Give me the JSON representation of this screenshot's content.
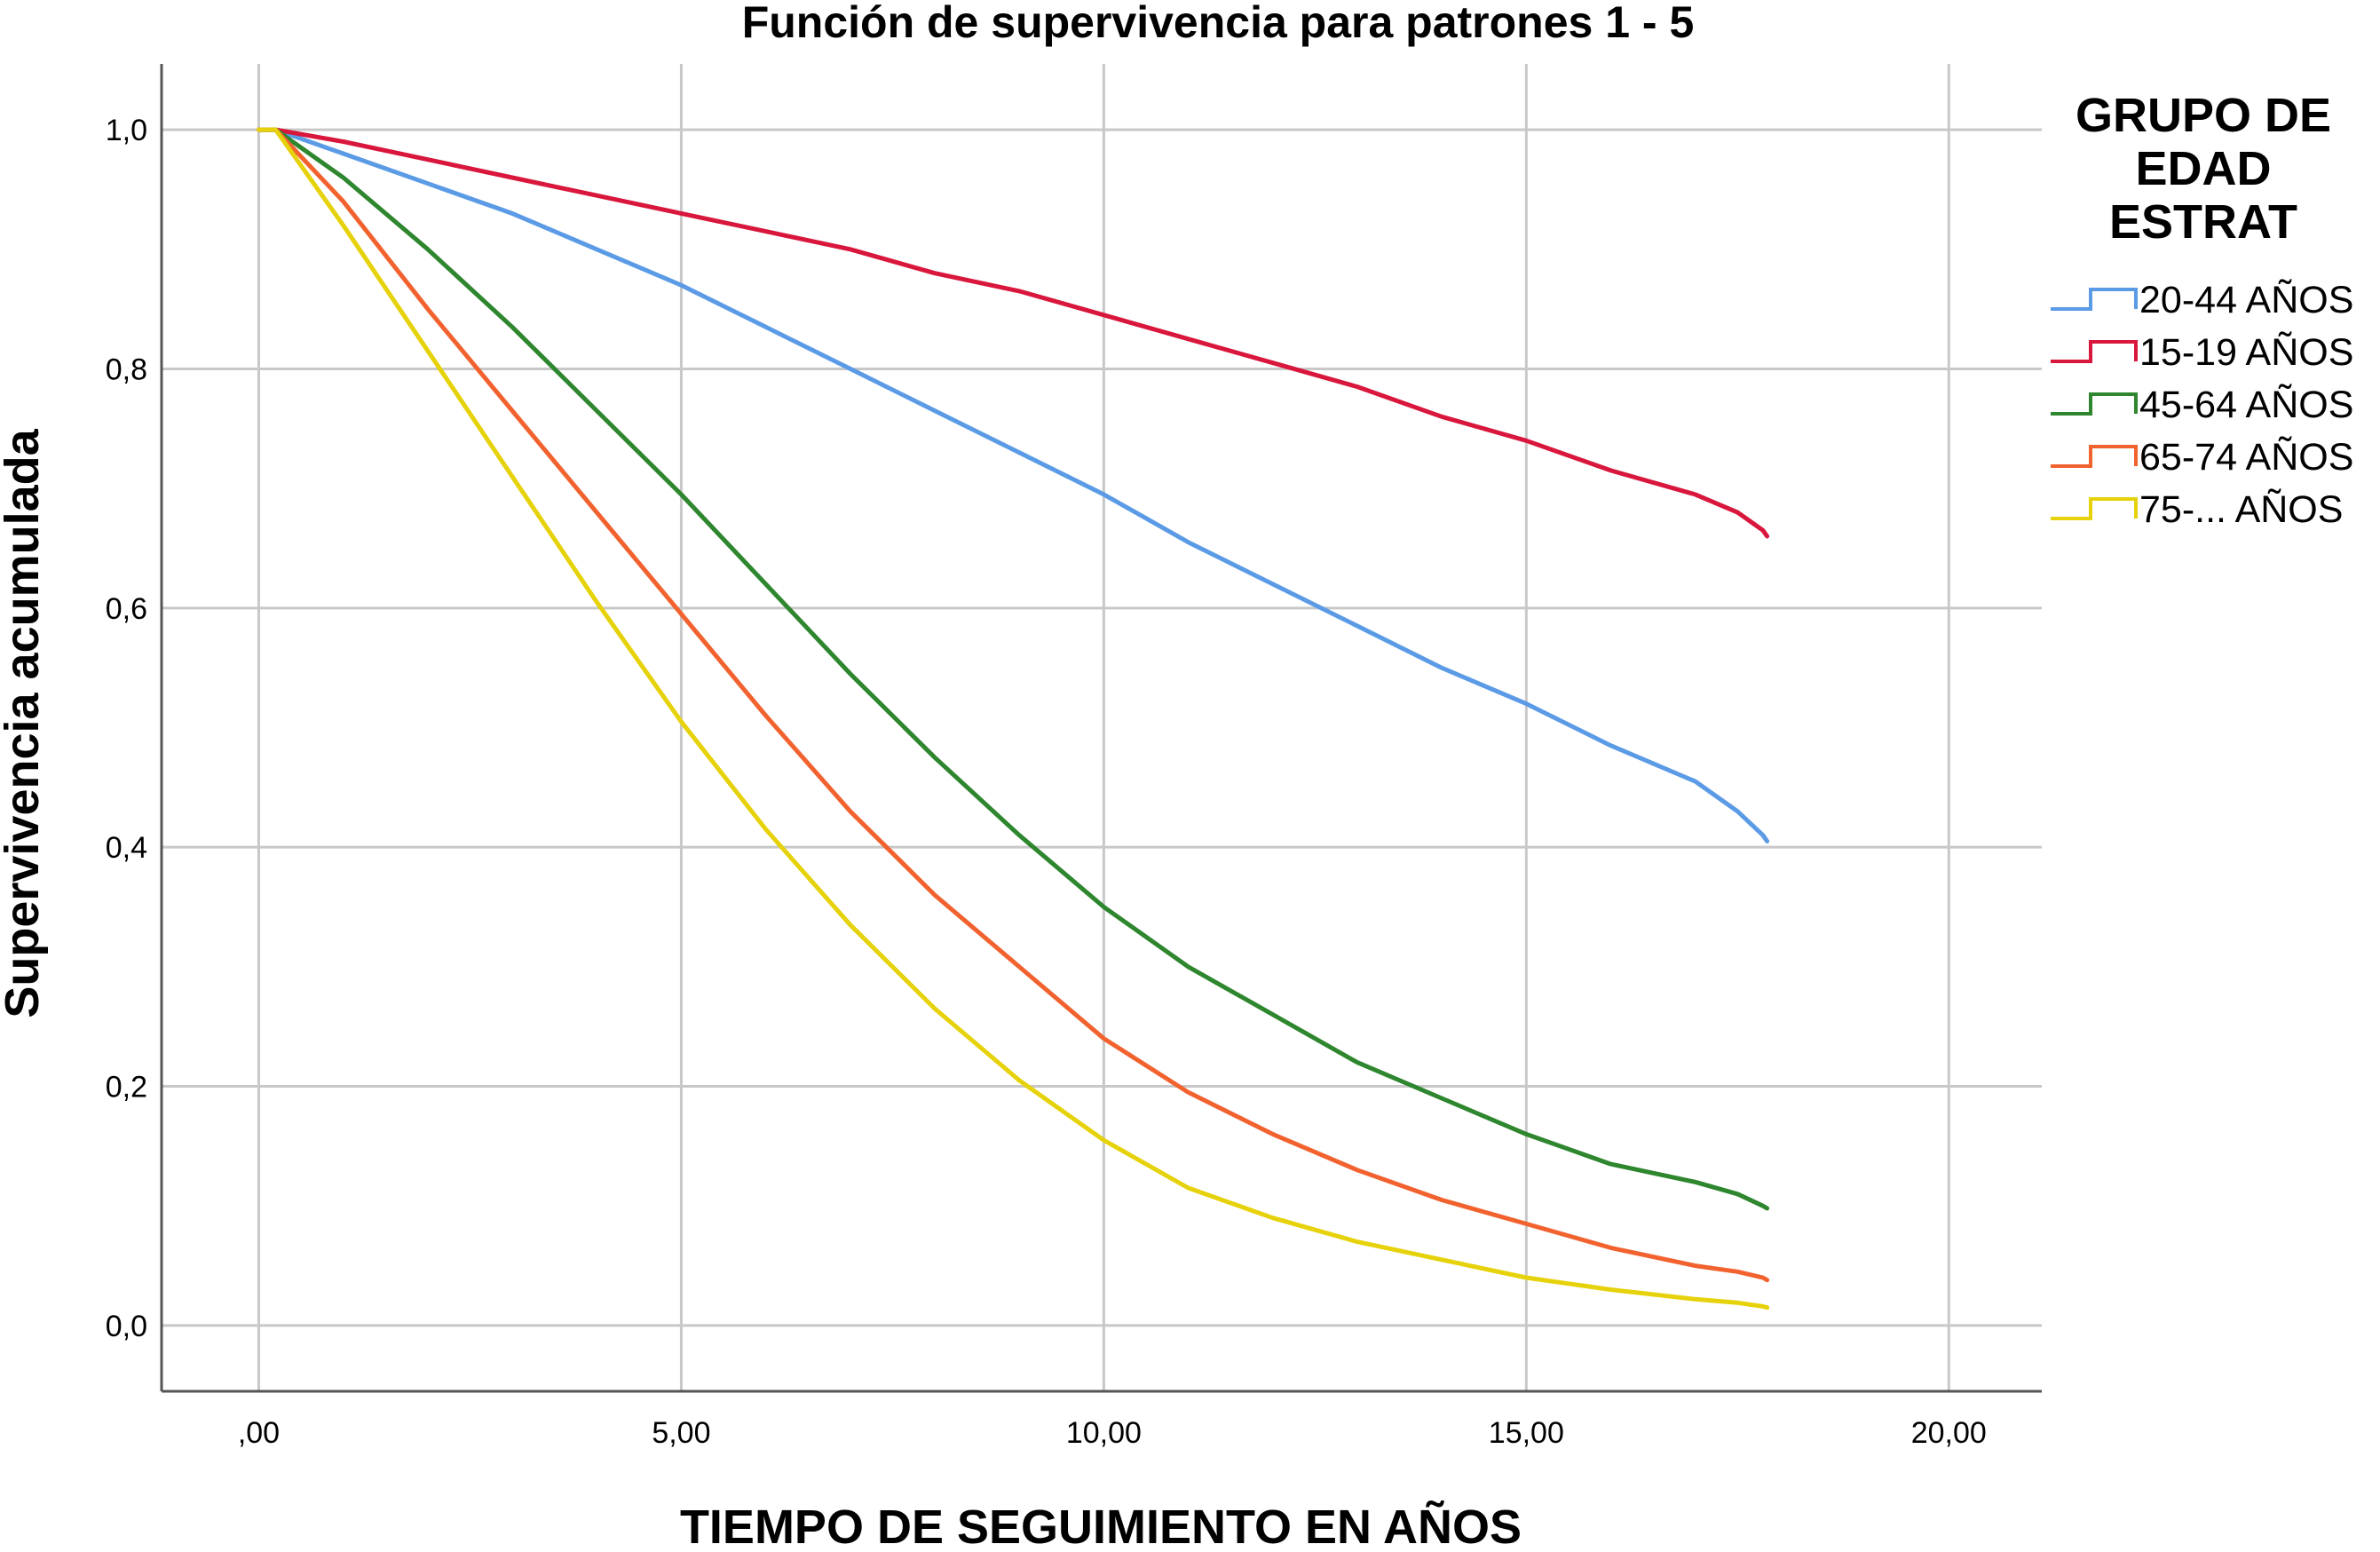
{
  "chart_data": {
    "type": "line",
    "title": "Función de supervivencia para patrones 1 - 5",
    "xlabel": "TIEMPO DE SEGUIMIENTO EN AÑOS",
    "ylabel": "Supervivencia acumulada",
    "xlim": [
      -1.15,
      21.1
    ],
    "ylim": [
      -0.055,
      1.055
    ],
    "x_ticks": [
      0,
      5,
      10,
      15,
      20
    ],
    "x_tick_labels": [
      ",00",
      "5,00",
      "10,00",
      "15,00",
      "20,00"
    ],
    "y_ticks": [
      0,
      0.2,
      0.4,
      0.6,
      0.8,
      1.0
    ],
    "y_tick_labels": [
      "0,0",
      "0,2",
      "0,4",
      "0,6",
      "0,8",
      "1,0"
    ],
    "grid": true,
    "legend": {
      "title_lines": [
        "GRUPO DE",
        "EDAD",
        "ESTRAT"
      ],
      "placement": "right"
    },
    "series": [
      {
        "name": "20-44 AÑOS",
        "color": "#5b9be6",
        "x": [
          0,
          0.2,
          1,
          2,
          3,
          4,
          5,
          6,
          7,
          8,
          9,
          10,
          11,
          12,
          13,
          14,
          15,
          16,
          17,
          17.5,
          17.8,
          17.85
        ],
        "y": [
          1,
          1,
          0.98,
          0.955,
          0.93,
          0.9,
          0.87,
          0.835,
          0.8,
          0.765,
          0.73,
          0.695,
          0.655,
          0.62,
          0.585,
          0.55,
          0.52,
          0.485,
          0.455,
          0.43,
          0.41,
          0.405
        ]
      },
      {
        "name": "15-19 AÑOS",
        "color": "#d9163c",
        "x": [
          0,
          0.2,
          1,
          2,
          3,
          4,
          5,
          6,
          7,
          8,
          9,
          10,
          11,
          12,
          13,
          14,
          15,
          16,
          17,
          17.5,
          17.8,
          17.85
        ],
        "y": [
          1,
          1,
          0.99,
          0.975,
          0.96,
          0.945,
          0.93,
          0.915,
          0.9,
          0.88,
          0.865,
          0.845,
          0.825,
          0.805,
          0.785,
          0.76,
          0.74,
          0.715,
          0.695,
          0.68,
          0.665,
          0.66
        ]
      },
      {
        "name": "45-64 AÑOS",
        "color": "#2e862e",
        "x": [
          0,
          0.2,
          1,
          2,
          3,
          4,
          5,
          6,
          7,
          8,
          9,
          10,
          11,
          12,
          13,
          14,
          15,
          16,
          17,
          17.5,
          17.8,
          17.85
        ],
        "y": [
          1,
          1,
          0.96,
          0.9,
          0.835,
          0.765,
          0.695,
          0.62,
          0.545,
          0.475,
          0.41,
          0.35,
          0.3,
          0.26,
          0.22,
          0.19,
          0.16,
          0.135,
          0.12,
          0.11,
          0.1,
          0.098
        ]
      },
      {
        "name": "65-74 AÑOS",
        "color": "#f2622f",
        "x": [
          0,
          0.2,
          1,
          2,
          3,
          4,
          5,
          6,
          7,
          8,
          9,
          10,
          11,
          12,
          13,
          14,
          15,
          16,
          17,
          17.5,
          17.8,
          17.85
        ],
        "y": [
          1,
          1,
          0.94,
          0.85,
          0.765,
          0.68,
          0.595,
          0.51,
          0.43,
          0.36,
          0.3,
          0.24,
          0.195,
          0.16,
          0.13,
          0.105,
          0.085,
          0.065,
          0.05,
          0.045,
          0.04,
          0.038
        ]
      },
      {
        "name": "75-... AÑOS",
        "color": "#e6d20a",
        "x": [
          0,
          0.2,
          1,
          2,
          3,
          4,
          5,
          6,
          7,
          8,
          9,
          10,
          11,
          12,
          13,
          14,
          15,
          16,
          17,
          17.5,
          17.8,
          17.85
        ],
        "y": [
          1,
          1,
          0.92,
          0.815,
          0.71,
          0.605,
          0.505,
          0.415,
          0.335,
          0.265,
          0.205,
          0.155,
          0.115,
          0.09,
          0.07,
          0.055,
          0.04,
          0.03,
          0.022,
          0.019,
          0.016,
          0.015
        ]
      }
    ]
  }
}
